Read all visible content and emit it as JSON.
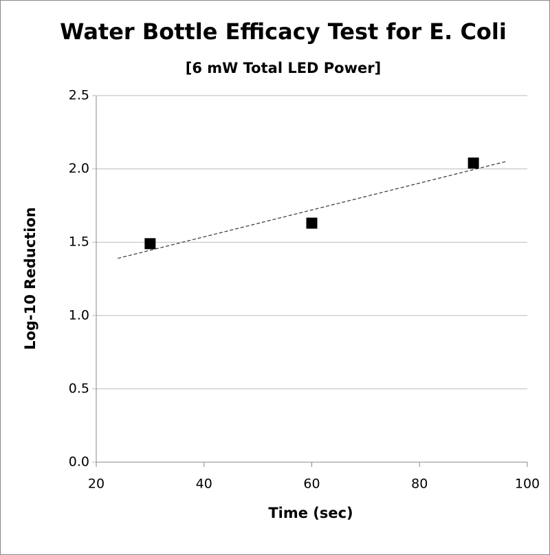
{
  "chart_data": {
    "type": "scatter",
    "title": "Water Bottle Efficacy Test for E. Coli",
    "subtitle": "[6 mW Total LED Power]",
    "x_label": "Time (sec)",
    "y_label": "Log-10 Reduction",
    "series": [
      {
        "name": "E. Coli",
        "color": "#000000",
        "x": [
          30,
          60,
          90
        ],
        "values": [
          1.49,
          1.63,
          2.04
        ]
      }
    ],
    "trendline": {
      "type": "linear",
      "from": 24,
      "to": 96
    },
    "xlim": [
      20,
      100
    ],
    "xticks": [
      20,
      40,
      60,
      80,
      100
    ],
    "ylim": [
      0,
      2.5
    ],
    "yticks": [
      {
        "value": 0,
        "label": "0.0"
      },
      0.5,
      {
        "value": 1,
        "label": "1.0"
      },
      1.5,
      {
        "value": 2,
        "label": "2.0"
      },
      2.5
    ],
    "grid": true
  }
}
